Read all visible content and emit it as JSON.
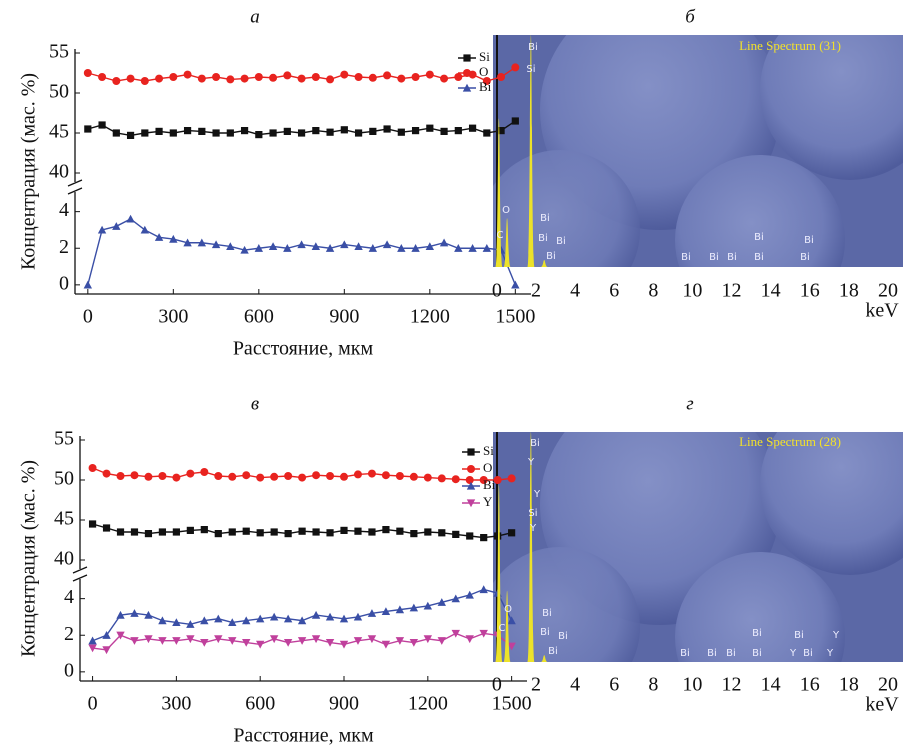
{
  "chart_data": [
    {
      "type": "line",
      "title": "а",
      "x": [
        0,
        50,
        100,
        150,
        200,
        250,
        300,
        350,
        400,
        450,
        500,
        550,
        600,
        650,
        700,
        750,
        800,
        850,
        900,
        950,
        1000,
        1050,
        1100,
        1150,
        1200,
        1250,
        1300,
        1350,
        1400,
        1450,
        1500
      ],
      "series": [
        {
          "name": "Si",
          "color": "#111111",
          "values": [
            45.5,
            46,
            45,
            44.7,
            45,
            45.2,
            45,
            45.3,
            45.2,
            45,
            45,
            45.3,
            44.8,
            45,
            45.2,
            45,
            45.3,
            45.1,
            45.4,
            45,
            45.2,
            45.5,
            45.1,
            45.3,
            45.6,
            45.2,
            45.3,
            45.6,
            45,
            45.3,
            46.5
          ]
        },
        {
          "name": "O",
          "color": "#e8231f",
          "values": [
            52.5,
            52,
            51.5,
            51.8,
            51.5,
            51.8,
            52,
            52.3,
            51.8,
            52,
            51.7,
            51.8,
            52,
            51.9,
            52.2,
            51.8,
            52,
            51.7,
            52.3,
            52,
            51.9,
            52.2,
            51.8,
            52,
            52.3,
            51.8,
            52,
            52.3,
            51.5,
            52,
            53.2
          ]
        },
        {
          "name": "Bi",
          "color": "#3a4fa6",
          "values": [
            0,
            3,
            3.2,
            3.6,
            3,
            2.6,
            2.5,
            2.3,
            2.3,
            2.2,
            2.1,
            1.9,
            2,
            2.1,
            2,
            2.2,
            2.1,
            2,
            2.2,
            2.1,
            2,
            2.2,
            2,
            2,
            2.1,
            2.3,
            2,
            2,
            2,
            1.9,
            0
          ]
        }
      ],
      "xlim": [
        -45,
        1555
      ],
      "xticks": [
        0,
        300,
        600,
        900,
        1200,
        1500
      ],
      "ylim": [
        [
          -0.5,
          4.8
        ],
        [
          39.5,
          55.5
        ]
      ],
      "yticks": [
        0,
        2,
        4,
        40,
        45,
        50,
        55
      ],
      "xlabel": "Расстояние, мкм",
      "ylabel": "Концентрация (мас. %)",
      "legend": "upper right"
    },
    {
      "type": "spectrum",
      "title": "б",
      "annotation": "Line Spectrum (31)",
      "x": [
        0.1,
        0.52,
        1.74,
        2.42
      ],
      "values": [
        64,
        21,
        100,
        3
      ],
      "ylim": [
        0,
        100
      ],
      "xlim": [
        -0.2,
        20.77
      ],
      "xticks": [
        0,
        2,
        4,
        6,
        8,
        10,
        12,
        14,
        16,
        18,
        20
      ],
      "xlabel": "keV",
      "peak_labels": [
        "Bi",
        "Si",
        "O",
        "C",
        "Bi",
        "Bi",
        "Bi",
        "Bi",
        "Bi",
        "Bi",
        "Bi",
        "Bi",
        "Bi",
        "Bi",
        "Bi"
      ]
    },
    {
      "type": "line",
      "title": "в",
      "x": [
        0,
        50,
        100,
        150,
        200,
        250,
        300,
        350,
        400,
        450,
        500,
        550,
        600,
        650,
        700,
        750,
        800,
        850,
        900,
        950,
        1000,
        1050,
        1100,
        1150,
        1200,
        1250,
        1300,
        1350,
        1400,
        1450,
        1500
      ],
      "series": [
        {
          "name": "Si",
          "color": "#111111",
          "values": [
            44.5,
            44,
            43.5,
            43.5,
            43.3,
            43.5,
            43.5,
            43.7,
            43.8,
            43.3,
            43.5,
            43.6,
            43.4,
            43.5,
            43.3,
            43.6,
            43.5,
            43.4,
            43.7,
            43.6,
            43.5,
            43.8,
            43.6,
            43.3,
            43.5,
            43.4,
            43.2,
            43,
            42.8,
            43,
            43.4
          ]
        },
        {
          "name": "O",
          "color": "#e8231f",
          "values": [
            51.5,
            50.8,
            50.5,
            50.6,
            50.4,
            50.5,
            50.3,
            50.8,
            51,
            50.5,
            50.4,
            50.6,
            50.3,
            50.4,
            50.5,
            50.3,
            50.6,
            50.5,
            50.4,
            50.7,
            50.8,
            50.6,
            50.5,
            50.4,
            50.3,
            50.2,
            50.1,
            50,
            50,
            50,
            50.2
          ]
        },
        {
          "name": "Bi",
          "color": "#3a4fa6",
          "values": [
            1.7,
            2,
            3.1,
            3.2,
            3.1,
            2.8,
            2.7,
            2.6,
            2.8,
            2.9,
            2.7,
            2.8,
            2.9,
            3,
            2.9,
            2.8,
            3.1,
            3,
            2.9,
            3,
            3.2,
            3.3,
            3.4,
            3.5,
            3.6,
            3.8,
            4,
            4.2,
            4.5,
            4.3,
            2.8
          ]
        },
        {
          "name": "Y",
          "color": "#c0409c",
          "values": [
            1.3,
            1.2,
            2,
            1.7,
            1.8,
            1.7,
            1.7,
            1.8,
            1.6,
            1.8,
            1.7,
            1.6,
            1.5,
            1.8,
            1.6,
            1.7,
            1.8,
            1.6,
            1.5,
            1.7,
            1.8,
            1.5,
            1.7,
            1.6,
            1.8,
            1.7,
            2.1,
            1.8,
            2.1,
            2,
            1.4
          ]
        }
      ],
      "xlim": [
        -45,
        1555
      ],
      "xticks": [
        0,
        300,
        600,
        900,
        1200,
        1500
      ],
      "ylim": [
        [
          -0.5,
          4.8
        ],
        [
          39.5,
          55.5
        ]
      ],
      "yticks": [
        0,
        2,
        4,
        40,
        45,
        50,
        55
      ],
      "xlabel": "Расстояние, мкм",
      "ylabel": "Концентрация (мас. %)",
      "legend": "upper right"
    },
    {
      "type": "spectrum",
      "title": "г",
      "annotation": "Line Spectrum (28)",
      "x": [
        0.1,
        0.52,
        1.74,
        2.42
      ],
      "values": [
        77,
        31,
        100,
        3
      ],
      "ylim": [
        0,
        100
      ],
      "xlim": [
        -0.2,
        20.77
      ],
      "xticks": [
        0,
        2,
        4,
        6,
        8,
        10,
        12,
        14,
        16,
        18,
        20
      ],
      "xlabel": "keV",
      "peak_labels": [
        "Bi",
        "Y",
        "Y",
        "Si",
        "Y",
        "O",
        "C",
        "Bi",
        "Bi",
        "Bi",
        "Bi",
        "Bi",
        "Bi",
        "Bi",
        "Bi",
        "Bi",
        "Y",
        "Bi",
        "Bi",
        "Y",
        "Y"
      ]
    }
  ]
}
